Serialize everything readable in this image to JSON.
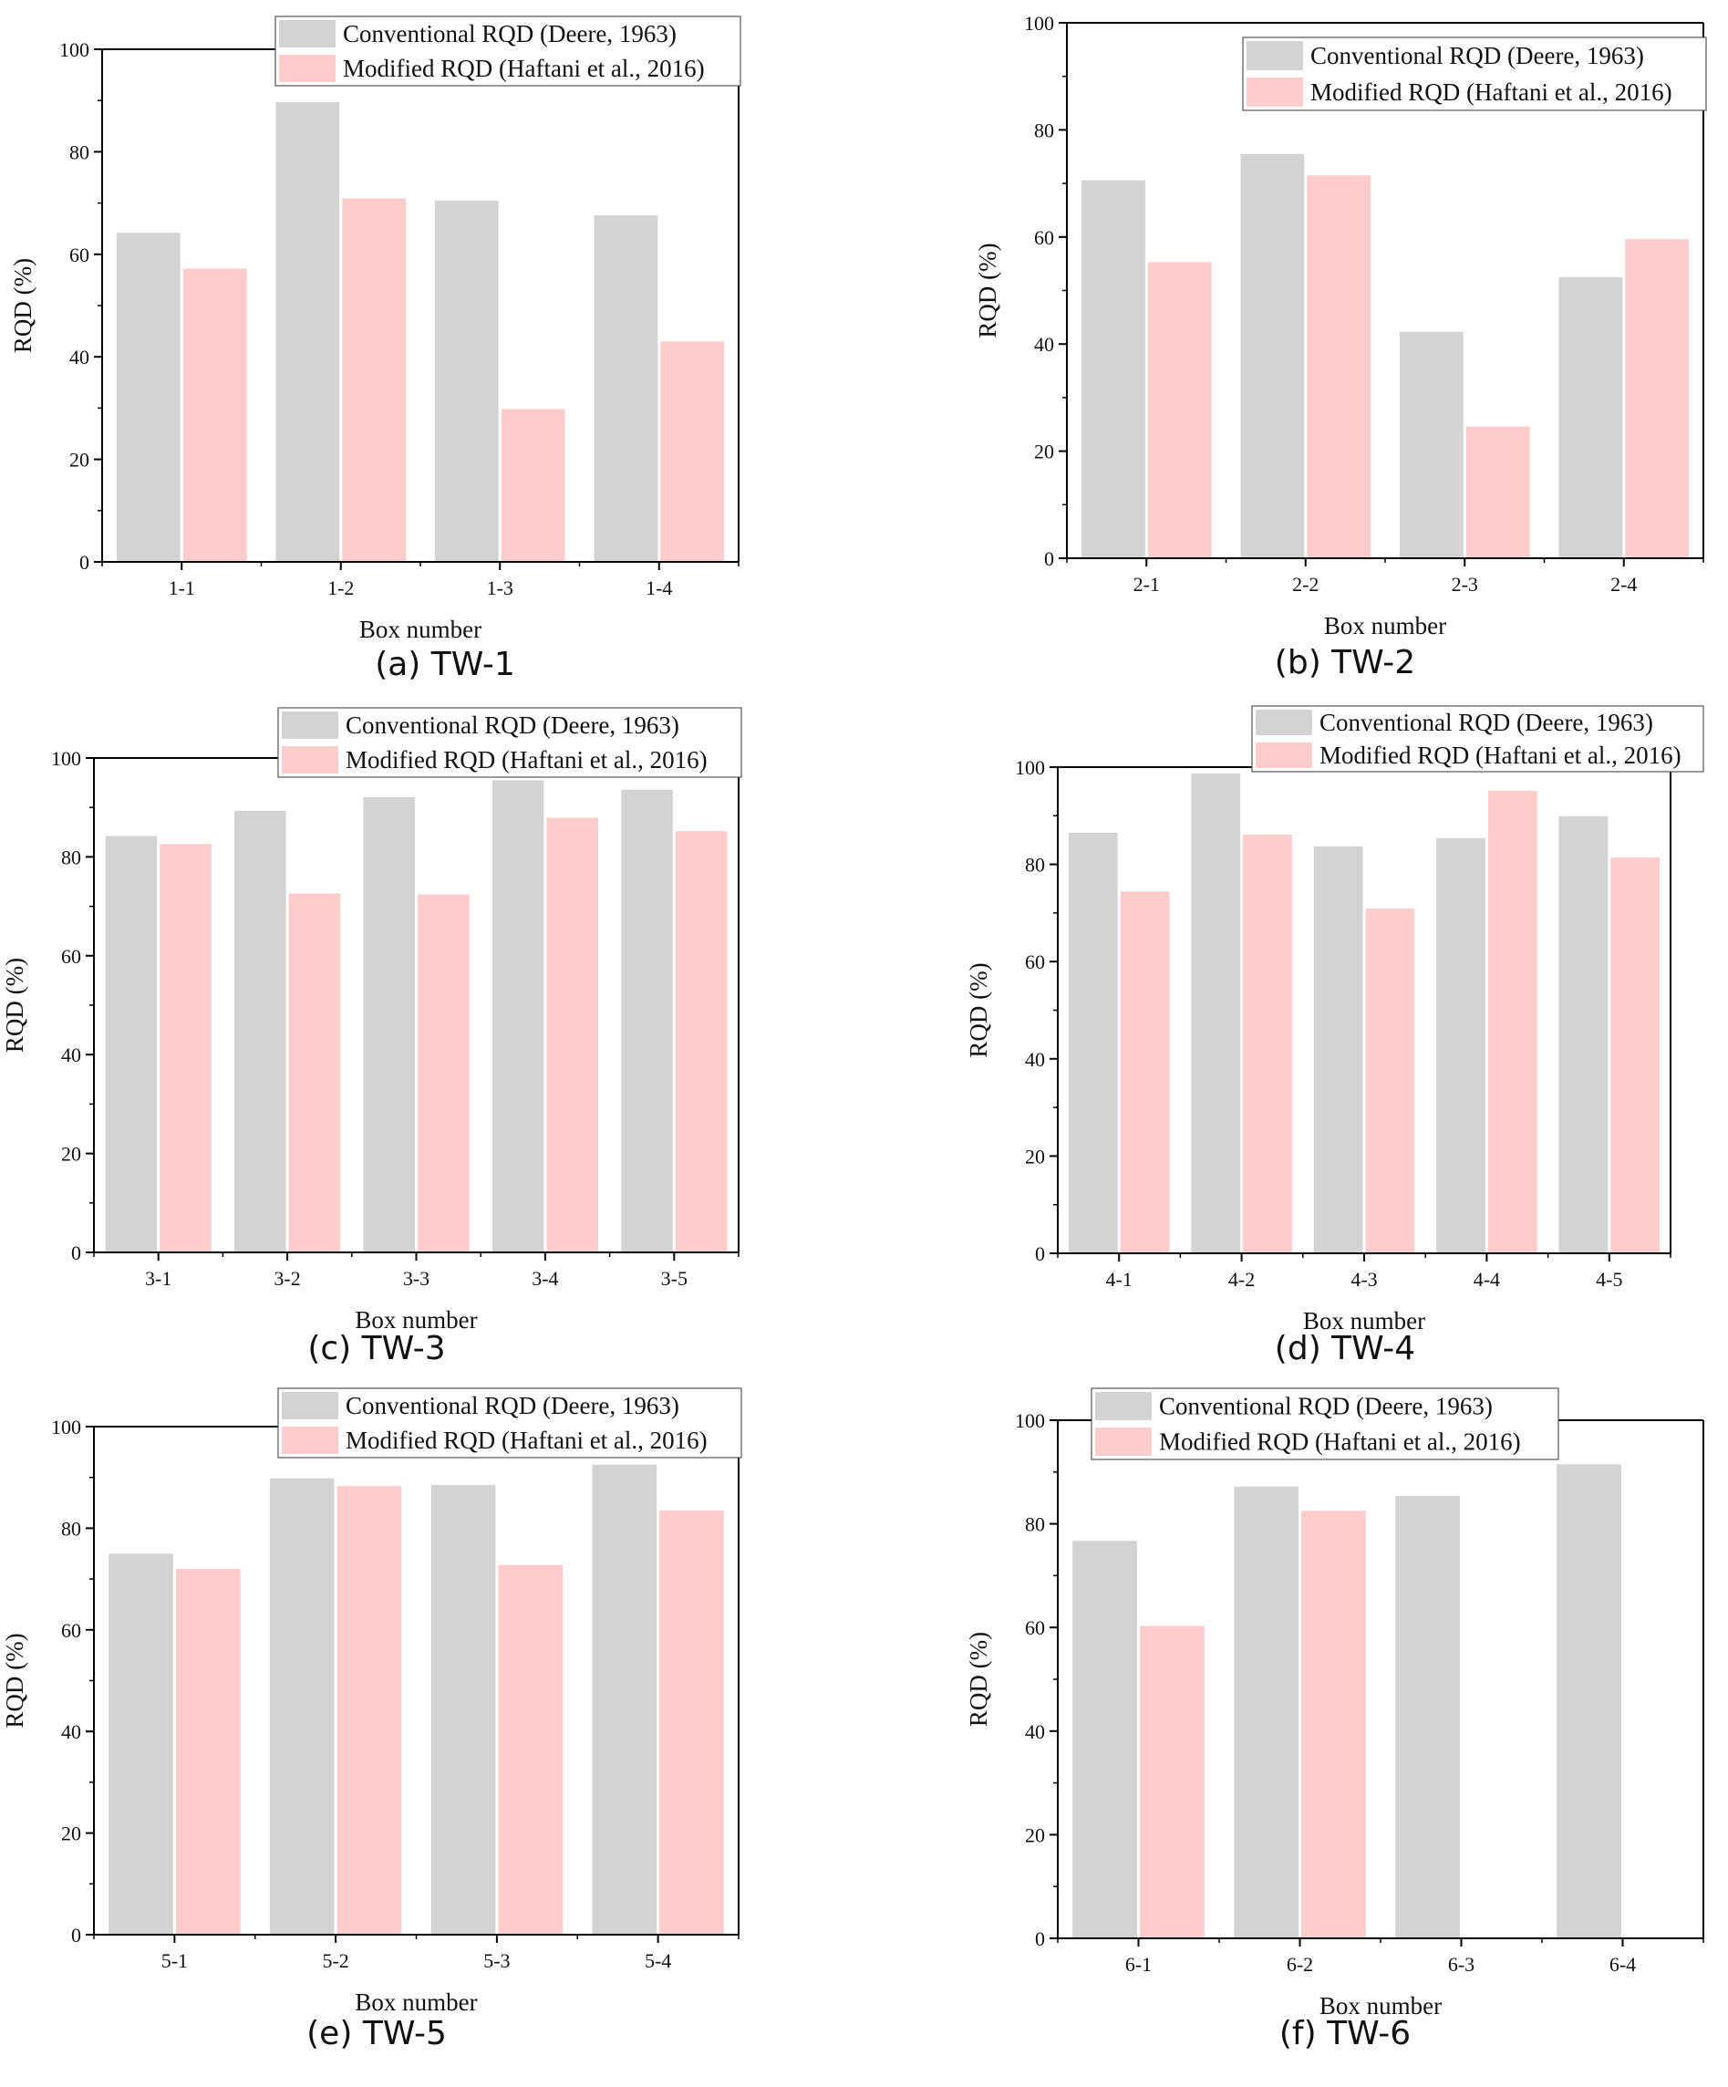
{
  "series_names": [
    "Conventional RQD (Deere, 1963)",
    "Modified RQD (Haftani et al., 2016)"
  ],
  "colors": {
    "conventional": "#d3d3d3",
    "modified": "#ffcccc",
    "axis": "#000000"
  },
  "chart_data": [
    {
      "type": "bar",
      "caption": "(a) TW-1",
      "xlabel": "Box number",
      "ylabel": "RQD (%)",
      "ylim": [
        0,
        100
      ],
      "yticks": [
        "0",
        "20",
        "40",
        "60",
        "80",
        "100"
      ],
      "categories": [
        "1-1",
        "1-2",
        "1-3",
        "1-4"
      ],
      "series": [
        {
          "name": "Conventional RQD (Deere, 1963)",
          "values": [
            64.2,
            89.7,
            70.5,
            67.6
          ]
        },
        {
          "name": "Modified RQD (Haftani et al., 2016)",
          "values": [
            57.2,
            70.9,
            29.8,
            43.0
          ]
        }
      ],
      "legend": "top-right"
    },
    {
      "type": "bar",
      "caption": "(b) TW-2",
      "xlabel": "Box number",
      "ylabel": "RQD (%)",
      "ylim": [
        0,
        100
      ],
      "yticks": [
        "0",
        "20",
        "40",
        "60",
        "80",
        "100"
      ],
      "categories": [
        "2-1",
        "2-2",
        "2-3",
        "2-4"
      ],
      "series": [
        {
          "name": "Conventional RQD (Deere, 1963)",
          "values": [
            70.6,
            75.5,
            42.3,
            52.5
          ]
        },
        {
          "name": "Modified RQD (Haftani et al., 2016)",
          "values": [
            55.3,
            71.5,
            24.6,
            59.6
          ]
        }
      ],
      "legend": "top-right"
    },
    {
      "type": "bar",
      "caption": "(c) TW-3",
      "xlabel": "Box number",
      "ylabel": "RQD (%)",
      "ylim": [
        0,
        100
      ],
      "yticks": [
        "0",
        "20",
        "40",
        "60",
        "80",
        "100"
      ],
      "categories": [
        "3-1",
        "3-2",
        "3-3",
        "3-4",
        "3-5"
      ],
      "series": [
        {
          "name": "Conventional RQD (Deere, 1963)",
          "values": [
            84.2,
            89.3,
            92.1,
            95.5,
            93.6
          ]
        },
        {
          "name": "Modified RQD (Haftani et al., 2016)",
          "values": [
            82.6,
            72.6,
            72.4,
            87.9,
            85.2
          ]
        }
      ],
      "legend": "top-right"
    },
    {
      "type": "bar",
      "caption": "(d) TW-4",
      "xlabel": "Box number",
      "ylabel": "RQD (%)",
      "ylim": [
        0,
        100
      ],
      "yticks": [
        "0",
        "20",
        "40",
        "60",
        "80",
        "100"
      ],
      "categories": [
        "4-1",
        "4-2",
        "4-3",
        "4-4",
        "4-5"
      ],
      "series": [
        {
          "name": "Conventional RQD (Deere, 1963)",
          "values": [
            86.5,
            98.7,
            83.7,
            85.4,
            89.9
          ]
        },
        {
          "name": "Modified RQD (Haftani et al., 2016)",
          "values": [
            74.4,
            86.1,
            70.9,
            95.1,
            81.4
          ]
        }
      ],
      "legend": "top-right"
    },
    {
      "type": "bar",
      "caption": "(e) TW-5",
      "xlabel": "Box number",
      "ylabel": "RQD (%)",
      "ylim": [
        0,
        100
      ],
      "yticks": [
        "0",
        "20",
        "40",
        "60",
        "80",
        "100"
      ],
      "categories": [
        "5-1",
        "5-2",
        "5-3",
        "5-4"
      ],
      "series": [
        {
          "name": "Conventional RQD (Deere, 1963)",
          "values": [
            75.0,
            89.8,
            88.5,
            92.5
          ]
        },
        {
          "name": "Modified RQD (Haftani et al., 2016)",
          "values": [
            72.0,
            88.3,
            72.8,
            83.5
          ]
        }
      ],
      "legend": "top-right"
    },
    {
      "type": "bar",
      "caption": "(f) TW-6",
      "xlabel": "Box number",
      "ylabel": "RQD (%)",
      "ylim": [
        0,
        100
      ],
      "yticks": [
        "0",
        "20",
        "40",
        "60",
        "80",
        "100"
      ],
      "categories": [
        "6-1",
        "6-2",
        "6-3",
        "6-4"
      ],
      "series": [
        {
          "name": "Conventional RQD (Deere, 1963)",
          "values": [
            76.7,
            87.2,
            85.4,
            91.5
          ]
        },
        {
          "name": "Modified RQD (Haftani et al., 2016)",
          "values": [
            60.3,
            82.5,
            null,
            null
          ]
        }
      ],
      "legend": "top-left"
    }
  ]
}
